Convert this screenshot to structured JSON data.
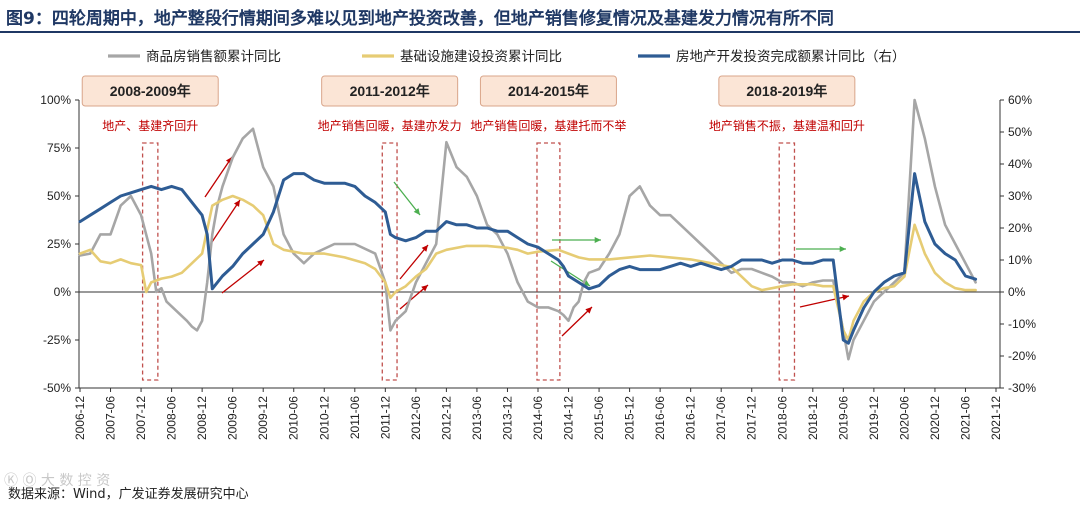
{
  "figure_title": "图9：四轮周期中，地产整段行情期间多难以见到地产投资改善，但地产销售修复情况及基建发力情况有所不同",
  "source": "数据来源：Wind，广发证券发展研究中心",
  "watermark": "Ⓚ Ⓞ 大 数 控 资",
  "colors": {
    "sales": "#a6a6a6",
    "infra": "#e6cc74",
    "realestate": "#2e5c94",
    "period_box": "#c0504d",
    "period_label_bg": "#fbe5d6",
    "green_arrow": "#4caf50",
    "red_arrow": "#c00000"
  },
  "chart_data": {
    "type": "line",
    "legend": [
      "商品房销售额累计同比",
      "基础设施建设投资累计同比",
      "房地产开发投资完成额累计同比（右）"
    ],
    "x_ticks": [
      "2006-12",
      "2007-06",
      "2007-12",
      "2008-06",
      "2008-12",
      "2009-06",
      "2009-12",
      "2010-06",
      "2010-12",
      "2011-06",
      "2011-12",
      "2012-06",
      "2012-12",
      "2013-06",
      "2013-12",
      "2014-06",
      "2014-12",
      "2015-06",
      "2015-12",
      "2016-06",
      "2016-12",
      "2017-06",
      "2017-12",
      "2018-06",
      "2018-12",
      "2019-06",
      "2019-12",
      "2020-06",
      "2020-12",
      "2021-06",
      "2021-12"
    ],
    "y_left": {
      "min": -50,
      "max": 100,
      "ticks": [
        "100%",
        "75%",
        "50%",
        "25%",
        "0%",
        "-25%",
        "-50%"
      ]
    },
    "y_right": {
      "min": -30,
      "max": 60,
      "ticks": [
        "60%",
        "50%",
        "40%",
        "30%",
        "20%",
        "10%",
        "0%",
        "-10%",
        "-20%",
        "-30%"
      ]
    },
    "periods": [
      {
        "label": "2008-2009年",
        "note": "地产、基建齐回升",
        "x_start": 12.3,
        "x_end": 15.3
      },
      {
        "label": "2011-2012年",
        "note": "地产销售回暖，基建亦发力",
        "x_start": 59.4,
        "x_end": 62.3
      },
      {
        "label": "2014-2015年",
        "note": "地产销售回暖，基建托而不举",
        "x_start": 89.8,
        "x_end": 94.3
      },
      {
        "label": "2018-2019年",
        "note": "地产销售不振，基建温和回升",
        "x_start": 137.4,
        "x_end": 140.4
      }
    ],
    "series": [
      {
        "name": "商品房销售额累计同比",
        "axis": "left",
        "points": [
          [
            0,
            19
          ],
          [
            2,
            20
          ],
          [
            4,
            30
          ],
          [
            6,
            30
          ],
          [
            8,
            45
          ],
          [
            10,
            50
          ],
          [
            12,
            40
          ],
          [
            14,
            20
          ],
          [
            15,
            0
          ],
          [
            16,
            2
          ],
          [
            17,
            -5
          ],
          [
            19,
            -10
          ],
          [
            21,
            -15
          ],
          [
            22,
            -18
          ],
          [
            23,
            -20
          ],
          [
            24,
            -15
          ],
          [
            25,
            5
          ],
          [
            26,
            30
          ],
          [
            27,
            45
          ],
          [
            28,
            55
          ],
          [
            30,
            70
          ],
          [
            32,
            80
          ],
          [
            34,
            85
          ],
          [
            36,
            65
          ],
          [
            38,
            55
          ],
          [
            40,
            30
          ],
          [
            42,
            20
          ],
          [
            44,
            15
          ],
          [
            46,
            20
          ],
          [
            50,
            25
          ],
          [
            54,
            25
          ],
          [
            58,
            20
          ],
          [
            60,
            5
          ],
          [
            61,
            -20
          ],
          [
            62,
            -15
          ],
          [
            64,
            -10
          ],
          [
            66,
            5
          ],
          [
            68,
            15
          ],
          [
            70,
            25
          ],
          [
            72,
            78
          ],
          [
            74,
            65
          ],
          [
            76,
            60
          ],
          [
            78,
            50
          ],
          [
            80,
            35
          ],
          [
            82,
            30
          ],
          [
            84,
            20
          ],
          [
            86,
            5
          ],
          [
            88,
            -5
          ],
          [
            90,
            -8
          ],
          [
            92,
            -8
          ],
          [
            94,
            -10
          ],
          [
            95,
            -12
          ],
          [
            96,
            -15
          ],
          [
            97,
            -8
          ],
          [
            98,
            -5
          ],
          [
            99,
            5
          ],
          [
            100,
            10
          ],
          [
            102,
            12
          ],
          [
            104,
            20
          ],
          [
            106,
            30
          ],
          [
            108,
            50
          ],
          [
            110,
            55
          ],
          [
            112,
            45
          ],
          [
            114,
            40
          ],
          [
            116,
            40
          ],
          [
            118,
            35
          ],
          [
            120,
            30
          ],
          [
            122,
            25
          ],
          [
            124,
            20
          ],
          [
            126,
            15
          ],
          [
            128,
            10
          ],
          [
            130,
            12
          ],
          [
            132,
            12
          ],
          [
            134,
            10
          ],
          [
            136,
            8
          ],
          [
            138,
            5
          ],
          [
            140,
            5
          ],
          [
            142,
            3
          ],
          [
            144,
            5
          ],
          [
            146,
            6
          ],
          [
            148,
            6
          ],
          [
            150,
            -20
          ],
          [
            151,
            -35
          ],
          [
            152,
            -25
          ],
          [
            154,
            -15
          ],
          [
            156,
            -5
          ],
          [
            158,
            0
          ],
          [
            160,
            5
          ],
          [
            162,
            10
          ],
          [
            164,
            100
          ],
          [
            166,
            80
          ],
          [
            168,
            55
          ],
          [
            170,
            35
          ],
          [
            172,
            25
          ],
          [
            174,
            15
          ],
          [
            176,
            5
          ]
        ]
      },
      {
        "name": "基础设施建设投资累计同比",
        "axis": "left",
        "points": [
          [
            0,
            20
          ],
          [
            2,
            22
          ],
          [
            4,
            16
          ],
          [
            6,
            15
          ],
          [
            8,
            17
          ],
          [
            10,
            15
          ],
          [
            12,
            14
          ],
          [
            13,
            0
          ],
          [
            14,
            5
          ],
          [
            16,
            7
          ],
          [
            18,
            8
          ],
          [
            20,
            10
          ],
          [
            22,
            15
          ],
          [
            24,
            20
          ],
          [
            26,
            45
          ],
          [
            28,
            48
          ],
          [
            30,
            50
          ],
          [
            32,
            48
          ],
          [
            34,
            45
          ],
          [
            36,
            40
          ],
          [
            38,
            25
          ],
          [
            40,
            22
          ],
          [
            44,
            20
          ],
          [
            48,
            20
          ],
          [
            52,
            18
          ],
          [
            56,
            15
          ],
          [
            58,
            12
          ],
          [
            60,
            5
          ],
          [
            61,
            -3
          ],
          [
            62,
            0
          ],
          [
            64,
            3
          ],
          [
            66,
            8
          ],
          [
            68,
            12
          ],
          [
            70,
            20
          ],
          [
            72,
            22
          ],
          [
            76,
            24
          ],
          [
            80,
            24
          ],
          [
            84,
            23
          ],
          [
            86,
            22
          ],
          [
            88,
            20
          ],
          [
            90,
            21
          ],
          [
            94,
            22
          ],
          [
            96,
            20
          ],
          [
            98,
            18
          ],
          [
            100,
            17
          ],
          [
            104,
            17
          ],
          [
            108,
            18
          ],
          [
            112,
            19
          ],
          [
            116,
            18
          ],
          [
            120,
            17
          ],
          [
            124,
            15
          ],
          [
            128,
            13
          ],
          [
            130,
            8
          ],
          [
            132,
            3
          ],
          [
            134,
            1
          ],
          [
            136,
            2
          ],
          [
            138,
            3
          ],
          [
            140,
            4
          ],
          [
            142,
            4
          ],
          [
            144,
            4
          ],
          [
            146,
            3
          ],
          [
            148,
            3
          ],
          [
            150,
            -20
          ],
          [
            151,
            -25
          ],
          [
            152,
            -15
          ],
          [
            154,
            -5
          ],
          [
            156,
            0
          ],
          [
            158,
            2
          ],
          [
            160,
            3
          ],
          [
            162,
            8
          ],
          [
            164,
            35
          ],
          [
            166,
            20
          ],
          [
            168,
            10
          ],
          [
            170,
            5
          ],
          [
            172,
            2
          ],
          [
            174,
            1
          ],
          [
            176,
            1
          ]
        ]
      },
      {
        "name": "房地产开发投资完成额累计同比（右）",
        "axis": "right",
        "points": [
          [
            0,
            22
          ],
          [
            2,
            24
          ],
          [
            4,
            26
          ],
          [
            6,
            28
          ],
          [
            8,
            30
          ],
          [
            10,
            31
          ],
          [
            12,
            32
          ],
          [
            14,
            33
          ],
          [
            16,
            32
          ],
          [
            18,
            33
          ],
          [
            20,
            32
          ],
          [
            22,
            28
          ],
          [
            24,
            24
          ],
          [
            25,
            18
          ],
          [
            26,
            1
          ],
          [
            28,
            5
          ],
          [
            30,
            8
          ],
          [
            32,
            12
          ],
          [
            34,
            15
          ],
          [
            36,
            18
          ],
          [
            38,
            25
          ],
          [
            40,
            35
          ],
          [
            42,
            37
          ],
          [
            44,
            37
          ],
          [
            46,
            35
          ],
          [
            48,
            34
          ],
          [
            50,
            34
          ],
          [
            52,
            34
          ],
          [
            54,
            33
          ],
          [
            56,
            30
          ],
          [
            58,
            28
          ],
          [
            60,
            25
          ],
          [
            61,
            18
          ],
          [
            62,
            17
          ],
          [
            64,
            16
          ],
          [
            66,
            17
          ],
          [
            68,
            19
          ],
          [
            70,
            19
          ],
          [
            72,
            22
          ],
          [
            74,
            21
          ],
          [
            76,
            21
          ],
          [
            78,
            20
          ],
          [
            80,
            20
          ],
          [
            82,
            19
          ],
          [
            84,
            19
          ],
          [
            86,
            17
          ],
          [
            88,
            15
          ],
          [
            90,
            14
          ],
          [
            92,
            12
          ],
          [
            94,
            10
          ],
          [
            95,
            8
          ],
          [
            96,
            5
          ],
          [
            98,
            3
          ],
          [
            100,
            1
          ],
          [
            102,
            2
          ],
          [
            104,
            5
          ],
          [
            106,
            7
          ],
          [
            108,
            8
          ],
          [
            110,
            7
          ],
          [
            112,
            7
          ],
          [
            114,
            7
          ],
          [
            116,
            8
          ],
          [
            118,
            9
          ],
          [
            120,
            8
          ],
          [
            122,
            9
          ],
          [
            124,
            8
          ],
          [
            126,
            7
          ],
          [
            128,
            8
          ],
          [
            130,
            10
          ],
          [
            132,
            10
          ],
          [
            134,
            10
          ],
          [
            136,
            9
          ],
          [
            138,
            10
          ],
          [
            140,
            10
          ],
          [
            142,
            9
          ],
          [
            144,
            9
          ],
          [
            146,
            10
          ],
          [
            148,
            10
          ],
          [
            150,
            -15
          ],
          [
            151,
            -16
          ],
          [
            152,
            -12
          ],
          [
            154,
            -5
          ],
          [
            156,
            0
          ],
          [
            158,
            3
          ],
          [
            160,
            5
          ],
          [
            162,
            6
          ],
          [
            164,
            37
          ],
          [
            166,
            22
          ],
          [
            168,
            15
          ],
          [
            170,
            12
          ],
          [
            172,
            10
          ],
          [
            174,
            5
          ],
          [
            176,
            4
          ]
        ]
      }
    ]
  }
}
